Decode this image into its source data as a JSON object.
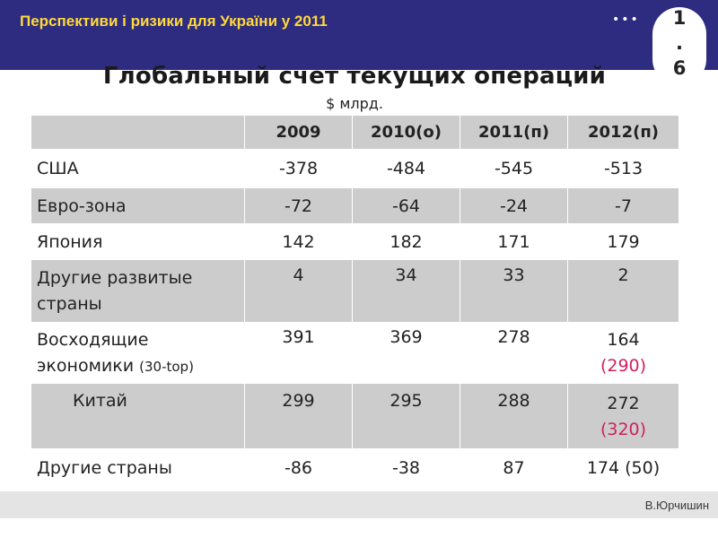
{
  "header": {
    "title": "Перспективи і ризики для України у 2011",
    "dots": "•••",
    "slide_number": "1\n.\n6"
  },
  "slide": {
    "title": "Глобальный счет текущих операций",
    "units": "$ млрд."
  },
  "table": {
    "columns": [
      "2009",
      "2010(о)",
      "2011(п)",
      "2012(п)"
    ],
    "rows": [
      {
        "label": "США",
        "values": [
          "-378",
          "-484",
          "-545",
          "-513"
        ]
      },
      {
        "label": "Евро-зона",
        "values": [
          "-72",
          "-64",
          "-24",
          "-7"
        ]
      },
      {
        "label": "Япония",
        "values": [
          "142",
          "182",
          "171",
          "179"
        ]
      },
      {
        "label": "Другие развитые страны",
        "values": [
          "4",
          "34",
          "33",
          "2"
        ]
      },
      {
        "label": "Восходящие экономики",
        "label_note": "(30-top)",
        "values": [
          "391",
          "369",
          "278",
          "164"
        ],
        "alt_2012": "(290)"
      },
      {
        "label": "Китай",
        "values": [
          "299",
          "295",
          "288",
          "272"
        ],
        "alt_2012": "(320)"
      },
      {
        "label": "Другие страны",
        "values": [
          "-86",
          "-38",
          "87",
          "174 (50)"
        ]
      }
    ]
  },
  "footer": {
    "author": "В.Юрчишин"
  },
  "colors": {
    "top_bar": "#2e2c80",
    "header_title": "#ffd83a",
    "shaded_row": "#cccccc",
    "highlight_text": "#d02060"
  }
}
